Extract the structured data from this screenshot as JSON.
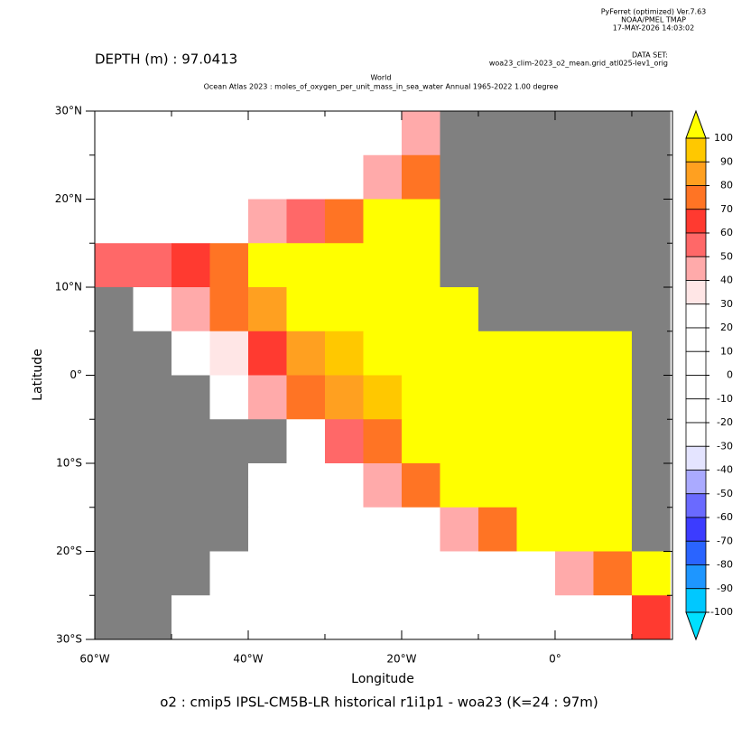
{
  "chart_data": {
    "type": "heatmap",
    "header": [
      "PyFerret (optimized) Ver.7.63",
      "NOAA/PMEL TMAP",
      "17-MAY-2026 14:03:02"
    ],
    "dataset_label": "DATA SET:",
    "dataset": "woa23_clim-2023_o2_mean.grid_atl025-lev1_orig",
    "depth_label": "DEPTH (m) : 97.0413",
    "title": "World",
    "subtitle": "Ocean Atlas 2023 : moles_of_oxygen_per_unit_mass_in_sea_water Annual 1965-2022 1.00 degree",
    "xlabel": "Longitude",
    "ylabel": "Latitude",
    "footer": "o2 : cmip5 IPSL-CM5B-LR historical r1i1p1 - woa23  (K=24 : 97m)",
    "xlim": [
      -60,
      15.3
    ],
    "ylim": [
      -30,
      30
    ],
    "xticks": [
      {
        "value": -60,
        "label": "60°W"
      },
      {
        "value": -40,
        "label": "40°W"
      },
      {
        "value": -20,
        "label": "20°W"
      },
      {
        "value": 0,
        "label": "0°"
      }
    ],
    "xminorticks": [
      -50,
      -30,
      -10,
      10
    ],
    "yticks": [
      {
        "value": 30,
        "label": "30°N"
      },
      {
        "value": 20,
        "label": "20°N"
      },
      {
        "value": 10,
        "label": "10°N"
      },
      {
        "value": 0,
        "label": "0°"
      },
      {
        "value": -10,
        "label": "10°S"
      },
      {
        "value": -20,
        "label": "20°S"
      },
      {
        "value": -30,
        "label": "30°S"
      }
    ],
    "yminorticks": [
      25,
      15,
      5,
      -5,
      -15,
      -25
    ],
    "x": [
      -57.5,
      -52.5,
      -47.5,
      -42.5,
      -37.5,
      -32.5,
      -27.5,
      -22.5,
      -17.5,
      -12.5,
      -7.5,
      -2.5,
      2.5,
      7.5,
      12.5
    ],
    "y": [
      27.5,
      22.5,
      17.5,
      12.5,
      7.5,
      2.5,
      -2.5,
      -7.5,
      -12.5,
      -17.5,
      -22.5,
      -27.5
    ],
    "z": [
      [
        10,
        10,
        10,
        10,
        10,
        10,
        10,
        10,
        45,
        null,
        null,
        null,
        null,
        null,
        null
      ],
      [
        10,
        10,
        10,
        10,
        10,
        10,
        10,
        45,
        75,
        null,
        null,
        null,
        null,
        null,
        null
      ],
      [
        10,
        10,
        10,
        10,
        40,
        55,
        70,
        105,
        105,
        null,
        null,
        null,
        null,
        null,
        null
      ],
      [
        50,
        50,
        65,
        75,
        105,
        105,
        105,
        105,
        105,
        null,
        null,
        null,
        null,
        null,
        null
      ],
      [
        null,
        10,
        45,
        70,
        85,
        105,
        105,
        105,
        105,
        105,
        null,
        null,
        null,
        null,
        null
      ],
      [
        null,
        null,
        10,
        30,
        60,
        85,
        95,
        105,
        105,
        105,
        105,
        105,
        105,
        105,
        null
      ],
      [
        null,
        null,
        null,
        10,
        40,
        70,
        80,
        95,
        105,
        105,
        105,
        105,
        105,
        105,
        null
      ],
      [
        null,
        null,
        null,
        null,
        null,
        15,
        50,
        75,
        105,
        105,
        105,
        105,
        105,
        105,
        null
      ],
      [
        null,
        null,
        null,
        null,
        10,
        10,
        10,
        40,
        70,
        105,
        105,
        105,
        105,
        105,
        null
      ],
      [
        null,
        null,
        null,
        null,
        10,
        10,
        10,
        10,
        10,
        40,
        70,
        105,
        105,
        105,
        null
      ],
      [
        null,
        null,
        null,
        10,
        10,
        10,
        10,
        10,
        10,
        10,
        10,
        10,
        40,
        70,
        105
      ],
      [
        null,
        null,
        10,
        10,
        10,
        10,
        10,
        10,
        10,
        10,
        10,
        10,
        10,
        10,
        65
      ]
    ],
    "land_color": "#808080",
    "levels": [
      100,
      90,
      80,
      70,
      60,
      50,
      40,
      30,
      20,
      10,
      0,
      -10,
      -20,
      -30,
      -40,
      -50,
      -60,
      -70,
      -80,
      -90,
      -100
    ],
    "colors": [
      "#ffc800",
      "#ffa020",
      "#ff7424",
      "#ff3a30",
      "#ff6868",
      "#ffaaaa",
      "#ffe6e6",
      "#ffffff",
      "#ffffff",
      "#ffffff",
      "#ffffff",
      "#ffffff",
      "#ffffff",
      "#e4e4ff",
      "#aaaaff",
      "#6a6aff",
      "#3c3cff",
      "#2a64ff",
      "#1e96ff",
      "#00c8ff"
    ],
    "over_color": "#ffff00",
    "under_color": "#00e0ff"
  }
}
